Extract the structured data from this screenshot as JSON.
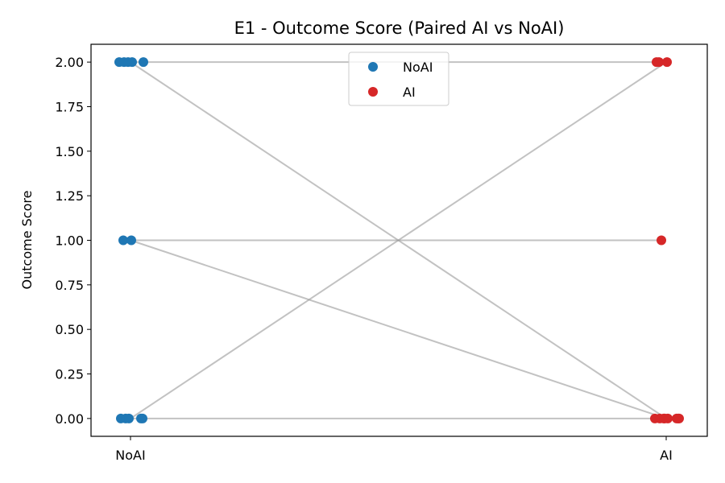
{
  "chart_data": {
    "type": "scatter",
    "title": "E1 - Outcome Score (Paired AI vs NoAI)",
    "xlabel": "",
    "ylabel": "Outcome Score",
    "categories": [
      "NoAI",
      "AI"
    ],
    "ylim": [
      -0.1,
      2.1
    ],
    "yticks": [
      "0.00",
      "0.25",
      "0.50",
      "0.75",
      "1.00",
      "1.25",
      "1.50",
      "1.75",
      "2.00"
    ],
    "grid": false,
    "legend_position": "upper center",
    "series": [
      {
        "name": "NoAI",
        "color": "#1f77b4",
        "x": [
          "NoAI",
          "NoAI",
          "NoAI",
          "NoAI",
          "NoAI",
          "NoAI",
          "NoAI",
          "NoAI",
          "NoAI",
          "NoAI",
          "NoAI",
          "NoAI"
        ],
        "y": [
          2,
          2,
          2,
          2,
          2,
          1,
          1,
          0,
          0,
          0,
          0,
          0
        ]
      },
      {
        "name": "AI",
        "color": "#d62728",
        "x": [
          "AI",
          "AI",
          "AI",
          "AI",
          "AI",
          "AI",
          "AI",
          "AI",
          "AI",
          "AI",
          "AI",
          "AI"
        ],
        "y": [
          2,
          2,
          2,
          1,
          0,
          0,
          0,
          0,
          0,
          0,
          0,
          0
        ]
      }
    ],
    "pairs": [
      {
        "noai": 2,
        "ai": 2
      },
      {
        "noai": 2,
        "ai": 0
      },
      {
        "noai": 1,
        "ai": 1
      },
      {
        "noai": 1,
        "ai": 0
      },
      {
        "noai": 0,
        "ai": 2
      },
      {
        "noai": 0,
        "ai": 0
      }
    ],
    "pair_line_color": "#999999"
  }
}
